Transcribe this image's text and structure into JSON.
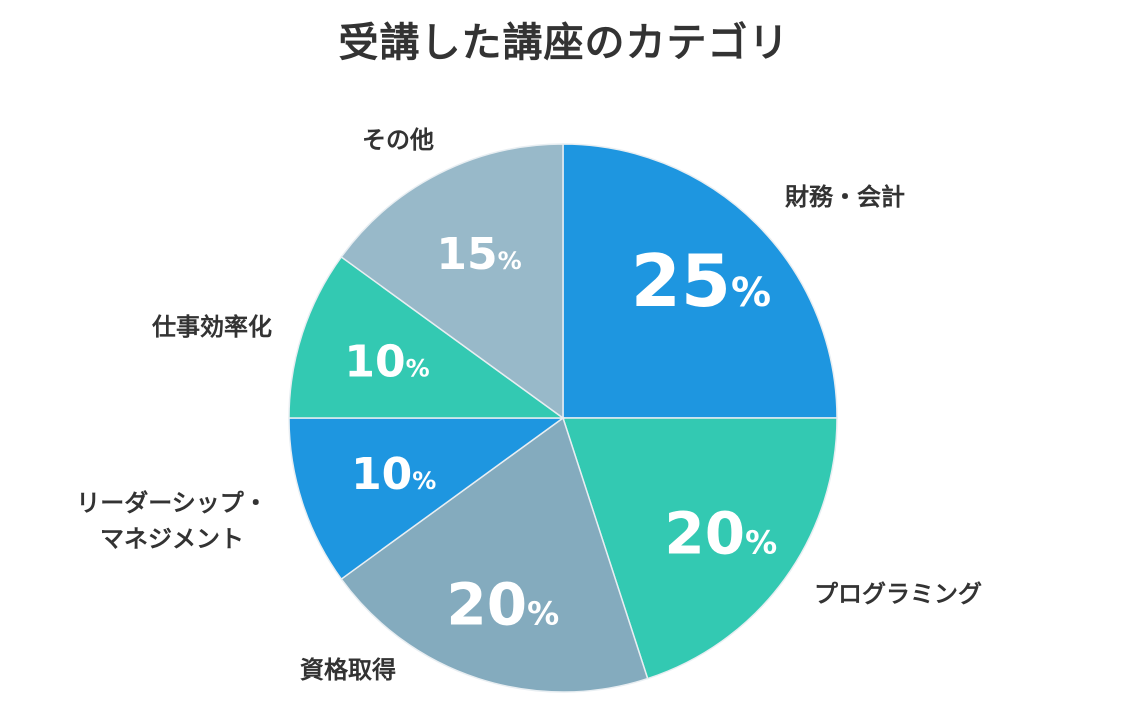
{
  "chart_data": {
    "type": "pie",
    "title": "受講した講座のカテゴリ",
    "categories": [
      "財務・会計",
      "プログラミング",
      "資格取得",
      "リーダーシップ・マネジメント",
      "仕事効率化",
      "その他"
    ],
    "label_lines": [
      [
        "財務・会計"
      ],
      [
        "プログラミング"
      ],
      [
        "資格取得"
      ],
      [
        "リーダーシップ・",
        "マネジメント"
      ],
      [
        "仕事効率化"
      ],
      [
        "その他"
      ]
    ],
    "values": [
      25,
      20,
      20,
      10,
      10,
      15
    ],
    "value_labels": [
      "25",
      "20",
      "20",
      "10",
      "10",
      "15"
    ],
    "value_suffix": "%",
    "colors": [
      "#1e96e0",
      "#33c9b2",
      "#84abbe",
      "#1e96e0",
      "#33c9b2",
      "#98b9c9"
    ],
    "start_angle_deg": 0,
    "direction": "clockwise"
  }
}
